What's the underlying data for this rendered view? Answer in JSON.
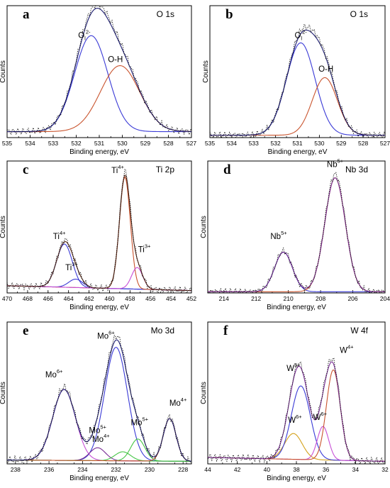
{
  "colors": {
    "envelope": "#1c1c70",
    "experimental": "#000000",
    "blue": "#3a3ad6",
    "red": "#c9542e",
    "magenta": "#c84fd6",
    "green": "#44c544",
    "orange": "#d4a11a",
    "purple": "#7a2f96",
    "darkbrown": "#5a2c1c"
  },
  "chart_data": [
    {
      "id": "a",
      "type": "line",
      "letter": "a",
      "title": "O 1s",
      "xlabel": "Binding energy, eV",
      "ylabel": "Counts",
      "xlim": [
        535,
        527
      ],
      "x_ticks": [
        535,
        534,
        533,
        532,
        531,
        530,
        529,
        528,
        527
      ],
      "ylim": [
        0,
        1.1
      ],
      "envelope": "#1c1c70",
      "series": [
        {
          "color": "#3a3ad6",
          "peaks": [
            {
              "center": 531.35,
              "height": 0.8,
              "fwhm": 1.7
            }
          ]
        },
        {
          "color": "#c9542e",
          "peaks": [
            {
              "center": 530.1,
              "height": 0.55,
              "fwhm": 2.0
            }
          ]
        }
      ],
      "background": [
        0.05,
        0.05
      ],
      "labels": [
        {
          "text": "O",
          "sub": "l",
          "sup": "2-",
          "x": 531.65,
          "y": 0.83
        },
        {
          "text": "O-H",
          "x": 530.3,
          "y": 0.63
        }
      ]
    },
    {
      "id": "b",
      "type": "line",
      "letter": "b",
      "title": "O 1s",
      "xlabel": "Binding energy, eV",
      "ylabel": "Counts",
      "xlim": [
        535,
        527
      ],
      "x_ticks": [
        535,
        534,
        533,
        532,
        531,
        530,
        529,
        528,
        527
      ],
      "ylim": [
        0,
        1.1
      ],
      "envelope": "#1c1c70",
      "series": [
        {
          "color": "#3a3ad6",
          "peaks": [
            {
              "center": 530.85,
              "height": 0.77,
              "fwhm": 1.55
            }
          ]
        },
        {
          "color": "#c9542e",
          "peaks": [
            {
              "center": 529.75,
              "height": 0.48,
              "fwhm": 1.35
            }
          ]
        }
      ],
      "background": [
        0.02,
        0.02
      ],
      "labels": [
        {
          "text": "O",
          "sub": "l",
          "sup": "2-",
          "x": 530.85,
          "y": 0.83
        },
        {
          "text": "O-H",
          "x": 529.7,
          "y": 0.55
        }
      ]
    },
    {
      "id": "c",
      "type": "line",
      "letter": "c",
      "title": "Ti 2p",
      "xlabel": "Binding energy, eV",
      "ylabel": "Counts",
      "xlim": [
        470,
        452
      ],
      "x_ticks": [
        470,
        468,
        466,
        464,
        462,
        460,
        458,
        456,
        454,
        452
      ],
      "ylim": [
        0,
        1.1
      ],
      "envelope": "#5a2c1c",
      "series": [
        {
          "color": "#3a3ad6",
          "peaks": [
            {
              "center": 464.4,
              "height": 0.36,
              "fwhm": 1.8
            }
          ]
        },
        {
          "color": "#3a3ad6",
          "peaks": [
            {
              "center": 463.3,
              "height": 0.07,
              "fwhm": 1.6
            }
          ]
        },
        {
          "color": "#c9542e",
          "peaks": [
            {
              "center": 458.5,
              "height": 0.93,
              "fwhm": 1.25
            }
          ]
        },
        {
          "color": "#c84fd6",
          "peaks": [
            {
              "center": 457.3,
              "height": 0.18,
              "fwhm": 1.3
            }
          ]
        }
      ],
      "background": [
        0.06,
        0.02
      ],
      "labels": [
        {
          "text": "Ti",
          "sup": "4+",
          "x": 464.9,
          "y": 0.45
        },
        {
          "text": "Ti",
          "sup": "3+",
          "x": 463.7,
          "y": 0.19
        },
        {
          "text": "Ti",
          "sup": "4+",
          "x": 459.2,
          "y": 1.0
        },
        {
          "text": "Ti",
          "sup": "3+",
          "x": 456.6,
          "y": 0.34
        }
      ]
    },
    {
      "id": "d",
      "type": "line",
      "letter": "d",
      "title": "Nb 3d",
      "xlabel": "Binding energy, eV",
      "ylabel": "Counts",
      "xlim": [
        215,
        204
      ],
      "x_ticks": [
        214,
        212,
        210,
        208,
        206,
        204
      ],
      "ylim": [
        0,
        1.1
      ],
      "envelope": "#7a2f96",
      "series": [
        {
          "color": "#3a3ad6",
          "peaks": [
            {
              "center": 210.3,
              "height": 0.33,
              "fwhm": 1.3
            }
          ]
        },
        {
          "color": "#c9542e",
          "peaks": [
            {
              "center": 207.1,
              "height": 0.95,
              "fwhm": 1.5
            }
          ]
        }
      ],
      "background": [
        0.01,
        0.01
      ],
      "labels": [
        {
          "text": "Nb",
          "sup": "5+",
          "x": 210.6,
          "y": 0.45
        },
        {
          "text": "Nb",
          "sup": "5+",
          "x": 207.1,
          "y": 1.05
        }
      ]
    },
    {
      "id": "e",
      "type": "line",
      "letter": "e",
      "title": "Mo 3d",
      "xlabel": "Binding energy, eV",
      "ylabel": "Counts",
      "xlim": [
        238.5,
        227.5
      ],
      "x_ticks": [
        238,
        236,
        234,
        232,
        230,
        228
      ],
      "ylim": [
        0,
        1.1
      ],
      "envelope": "#1c1c70",
      "series": [
        {
          "color": "#c84fd6",
          "peaks": [
            {
              "center": 235.1,
              "height": 0.55,
              "fwhm": 1.6
            }
          ]
        },
        {
          "color": "#3a3ad6",
          "peaks": [
            {
              "center": 232.0,
              "height": 0.88,
              "fwhm": 1.6
            }
          ]
        },
        {
          "color": "#7a2f96",
          "peaks": [
            {
              "center": 233.1,
              "height": 0.1,
              "fwhm": 1.1
            }
          ]
        },
        {
          "color": "#44c544",
          "peaks": [
            {
              "center": 231.6,
              "height": 0.07,
              "fwhm": 1.1
            }
          ]
        },
        {
          "color": "#44c544",
          "peaks": [
            {
              "center": 230.7,
              "height": 0.17,
              "fwhm": 1.0
            }
          ]
        },
        {
          "color": "#c9542e",
          "peaks": [
            {
              "center": 228.8,
              "height": 0.33,
              "fwhm": 0.9
            }
          ]
        }
      ],
      "background": [
        0.03,
        0.02
      ],
      "labels": [
        {
          "text": "Mo",
          "sup": "6+",
          "x": 235.7,
          "y": 0.67
        },
        {
          "text": "Mo",
          "sup": "6+",
          "x": 232.6,
          "y": 0.97
        },
        {
          "text": "Mo",
          "sup": "5+",
          "x": 233.1,
          "y": 0.24
        },
        {
          "text": "Mo",
          "sup": "4+",
          "x": 232.9,
          "y": 0.17
        },
        {
          "text": "Mo",
          "sup": "5+",
          "x": 230.6,
          "y": 0.3
        },
        {
          "text": "Mo",
          "sup": "4+",
          "x": 228.3,
          "y": 0.45
        }
      ]
    },
    {
      "id": "f",
      "type": "line",
      "letter": "f",
      "title": "W 4f",
      "xlabel": "Binding energy, eV",
      "ylabel": "Counts",
      "xlim": [
        44,
        32
      ],
      "x_ticks": [
        44,
        42,
        40,
        38,
        36,
        34,
        32
      ],
      "ylim": [
        0,
        1.1
      ],
      "envelope": "#7a2f96",
      "series": [
        {
          "color": "#d4a11a",
          "peaks": [
            {
              "center": 38.2,
              "height": 0.2,
              "fwhm": 1.4
            }
          ]
        },
        {
          "color": "#3a3ad6",
          "peaks": [
            {
              "center": 37.7,
              "height": 0.57,
              "fwhm": 1.5
            }
          ]
        },
        {
          "color": "#c84fd6",
          "peaks": [
            {
              "center": 36.2,
              "height": 0.26,
              "fwhm": 0.9
            }
          ]
        },
        {
          "color": "#c9542e",
          "peaks": [
            {
              "center": 35.5,
              "height": 0.7,
              "fwhm": 1.1
            }
          ]
        }
      ],
      "background": [
        0.05,
        0.02
      ],
      "labels": [
        {
          "text": "W",
          "sup": "5+",
          "x": 38.2,
          "y": 0.72
        },
        {
          "text": "W",
          "sup": "6+",
          "x": 38.1,
          "y": 0.32
        },
        {
          "text": "W",
          "sup": "4+",
          "x": 34.6,
          "y": 0.86
        },
        {
          "text": "W",
          "sup": "6+",
          "x": 36.4,
          "y": 0.34
        }
      ]
    }
  ]
}
